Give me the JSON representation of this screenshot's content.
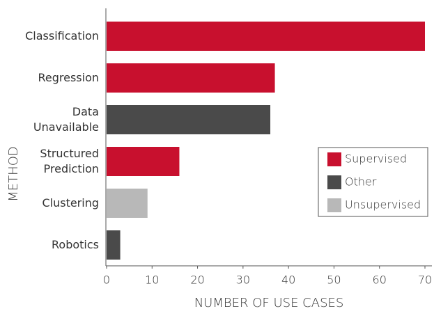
{
  "chart_data": {
    "type": "bar",
    "orientation": "horizontal",
    "categories": [
      "Classification",
      "Regression",
      "Data\nUnavailable",
      "Structured\nPrediction",
      "Clustering",
      "Robotics"
    ],
    "series": [
      {
        "name": "Supervised",
        "color": "#c8102e",
        "values": [
          70,
          37,
          null,
          16,
          null,
          null
        ]
      },
      {
        "name": "Other",
        "color": "#4a4a4a",
        "values": [
          null,
          null,
          36,
          null,
          null,
          3
        ]
      },
      {
        "name": "Unsupervised",
        "color": "#b8b8b8",
        "values": [
          null,
          null,
          null,
          null,
          9,
          null
        ]
      }
    ],
    "xlabel": "NUMBER OF USE CASES",
    "ylabel": "METHOD",
    "xlim": [
      0,
      70
    ],
    "xticks": [
      0,
      10,
      20,
      30,
      40,
      50,
      60,
      70
    ],
    "legend": "right"
  }
}
